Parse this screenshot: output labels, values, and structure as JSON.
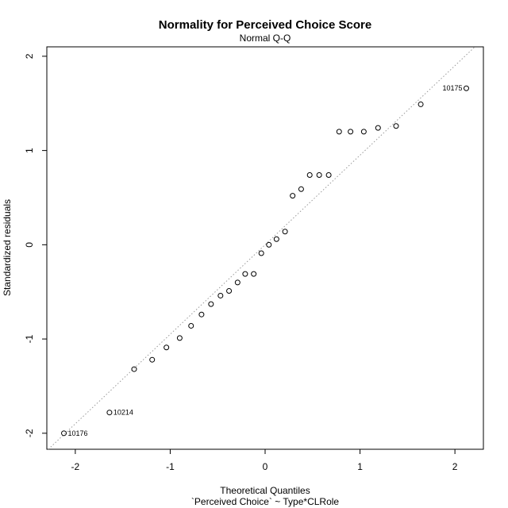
{
  "chart_data": {
    "type": "scatter",
    "title": "Normality for Perceived Choice Score",
    "subtitle": "Normal Q-Q",
    "xlabel": "Theoretical Quantiles",
    "xlabel2": "`Perceived Choice` ~ Type*CLRole",
    "ylabel": "Standardized residuals",
    "xlim": [
      -2.3,
      2.3
    ],
    "ylim": [
      -2.17,
      2.1
    ],
    "xticks": [
      -2,
      -1,
      0,
      1,
      2
    ],
    "yticks": [
      -2,
      -1,
      0,
      1,
      2
    ],
    "reference_line": {
      "style": "dotted",
      "intercept": 0.0,
      "slope": 0.95
    },
    "points": [
      {
        "x": -2.12,
        "y": -2.0,
        "label": "10176"
      },
      {
        "x": -1.64,
        "y": -1.78,
        "label": "10214"
      },
      {
        "x": -1.38,
        "y": -1.32
      },
      {
        "x": -1.19,
        "y": -1.22
      },
      {
        "x": -1.04,
        "y": -1.09
      },
      {
        "x": -0.9,
        "y": -0.99
      },
      {
        "x": -0.78,
        "y": -0.86
      },
      {
        "x": -0.67,
        "y": -0.74
      },
      {
        "x": -0.57,
        "y": -0.63
      },
      {
        "x": -0.47,
        "y": -0.54
      },
      {
        "x": -0.38,
        "y": -0.49
      },
      {
        "x": -0.29,
        "y": -0.4
      },
      {
        "x": -0.21,
        "y": -0.31
      },
      {
        "x": -0.12,
        "y": -0.31
      },
      {
        "x": -0.04,
        "y": -0.09
      },
      {
        "x": 0.04,
        "y": 0.0
      },
      {
        "x": 0.12,
        "y": 0.06
      },
      {
        "x": 0.21,
        "y": 0.14
      },
      {
        "x": 0.29,
        "y": 0.52
      },
      {
        "x": 0.38,
        "y": 0.59
      },
      {
        "x": 0.47,
        "y": 0.74
      },
      {
        "x": 0.57,
        "y": 0.74
      },
      {
        "x": 0.67,
        "y": 0.74
      },
      {
        "x": 0.78,
        "y": 1.2
      },
      {
        "x": 0.9,
        "y": 1.2
      },
      {
        "x": 1.04,
        "y": 1.2
      },
      {
        "x": 1.19,
        "y": 1.24
      },
      {
        "x": 1.38,
        "y": 1.26
      },
      {
        "x": 1.64,
        "y": 1.49
      },
      {
        "x": 2.12,
        "y": 1.66,
        "label": "10175"
      }
    ]
  }
}
